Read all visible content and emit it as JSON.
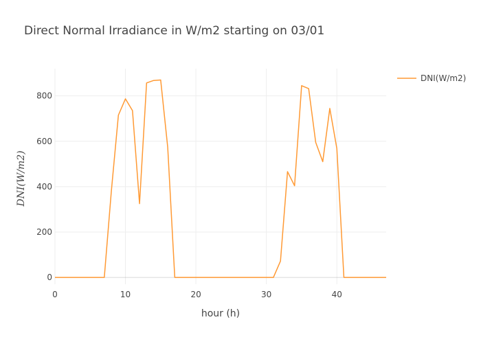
{
  "chart_data": {
    "type": "line",
    "title": "Direct Normal Irradiance in W/m2 starting on 03/01",
    "xlabel": "hour (h)",
    "ylabel": "DNI(W/m2)",
    "xlim": [
      0,
      47
    ],
    "ylim": [
      -30,
      920
    ],
    "xticks": [
      0,
      10,
      20,
      30,
      40
    ],
    "yticks": [
      0,
      200,
      400,
      600,
      800
    ],
    "grid": true,
    "legend_position": "top-right",
    "series": [
      {
        "name": "DNI(W/m2)",
        "color": "#ff9933",
        "x": [
          0,
          1,
          2,
          3,
          4,
          5,
          6,
          7,
          8,
          9,
          10,
          11,
          12,
          13,
          14,
          15,
          16,
          17,
          18,
          19,
          20,
          21,
          22,
          23,
          24,
          25,
          26,
          27,
          28,
          29,
          30,
          31,
          32,
          33,
          34,
          35,
          36,
          37,
          38,
          39,
          40,
          41,
          42,
          43,
          44,
          45,
          46,
          47
        ],
        "values": [
          0,
          0,
          0,
          0,
          0,
          0,
          0,
          0,
          380,
          715,
          787,
          735,
          325,
          857,
          868,
          870,
          573,
          0,
          0,
          0,
          0,
          0,
          0,
          0,
          0,
          0,
          0,
          0,
          0,
          0,
          0,
          0,
          72,
          466,
          404,
          845,
          832,
          595,
          510,
          745,
          568,
          0,
          0,
          0,
          0,
          0,
          0,
          0
        ]
      }
    ]
  }
}
